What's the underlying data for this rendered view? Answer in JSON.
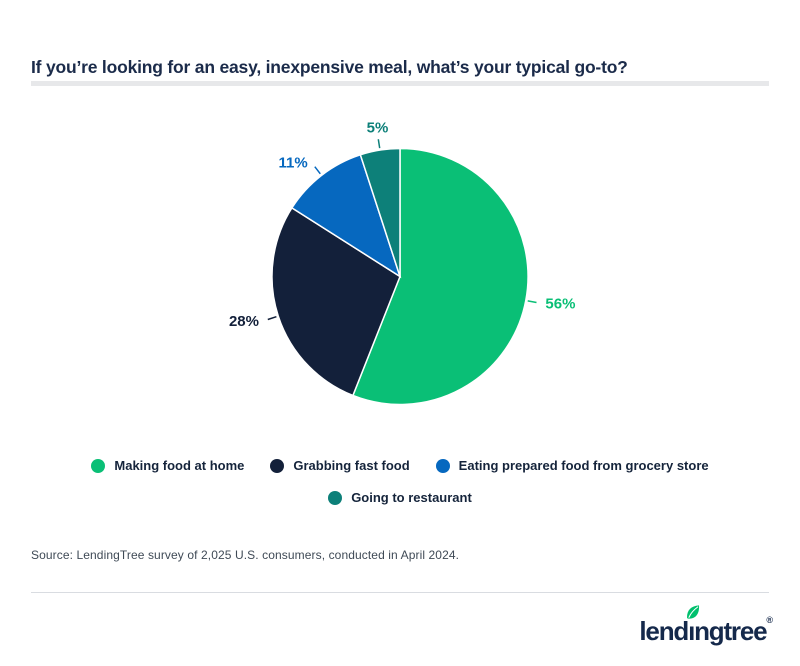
{
  "header": {
    "title": "If you’re looking for an easy, inexpensive meal, what’s your typical go-to?"
  },
  "chart_data": {
    "type": "pie",
    "title": "If you’re looking for an easy, inexpensive meal, what’s your typical go-to?",
    "direction": "clockwise",
    "start_angle_deg": 0,
    "legend_position": "bottom",
    "slices": [
      {
        "label": "Making food at home",
        "value": 56,
        "display_value": "56%",
        "color": "#0abf76"
      },
      {
        "label": "Grabbing fast food",
        "value": 28,
        "display_value": "28%",
        "color": "#13203a"
      },
      {
        "label": "Eating prepared food from grocery store",
        "value": 11,
        "display_value": "11%",
        "color": "#0668bf"
      },
      {
        "label": "Going to restaurant",
        "value": 5,
        "display_value": "5%",
        "color": "#0d8079"
      }
    ],
    "legend_rows": [
      [
        0,
        1,
        2
      ],
      [
        3
      ]
    ]
  },
  "footer": {
    "source": "Source: LendingTree survey of 2,025 U.S. consumers, conducted in April 2024.",
    "logo": {
      "pre": "lend",
      "i": "ı",
      "post": "ngtree",
      "mark": "®",
      "leaf_color": "#00c06d",
      "wordmark_color": "#15294b"
    }
  }
}
